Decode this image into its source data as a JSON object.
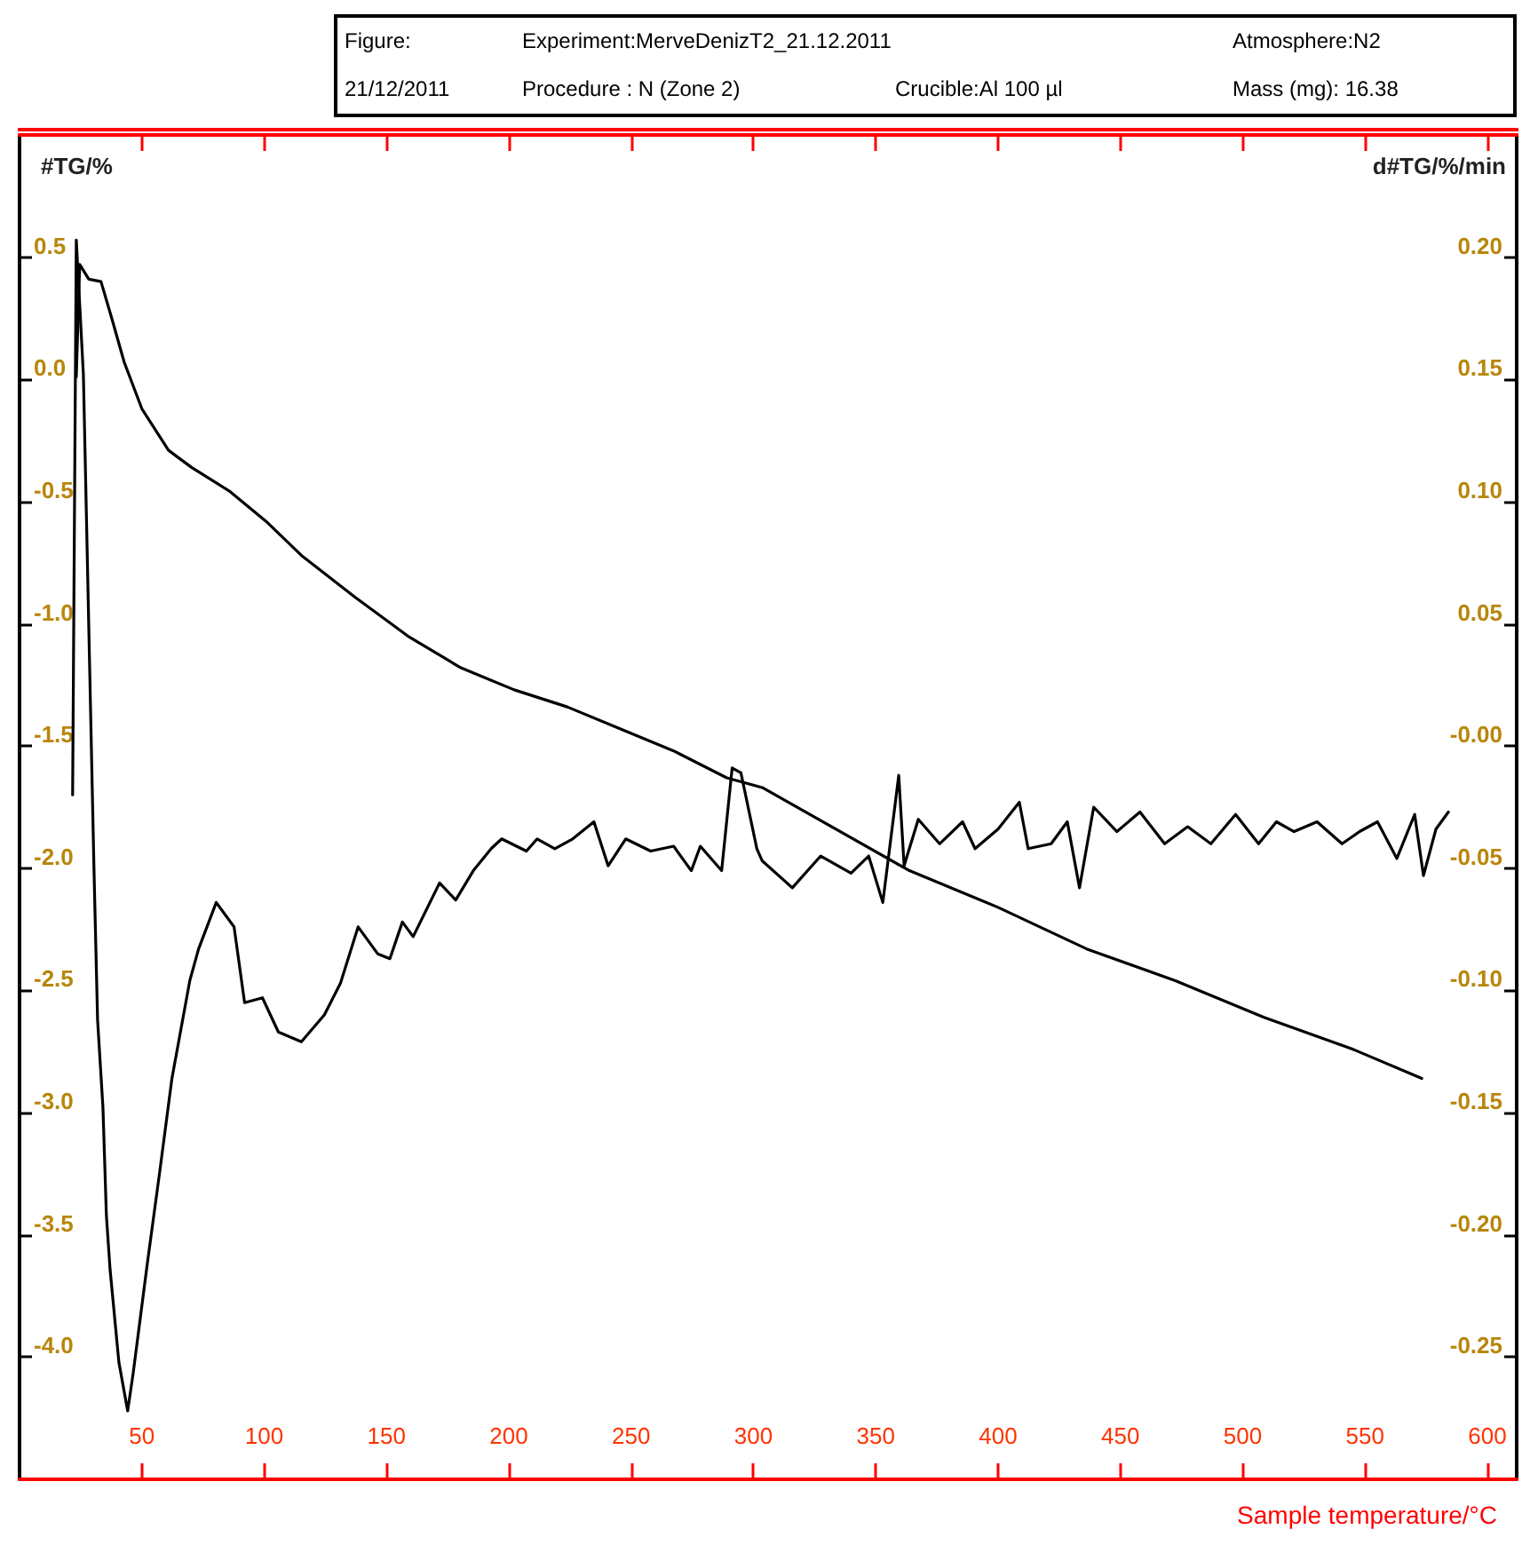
{
  "chart_data": {
    "type": "line",
    "xlabel": "Sample temperature/°C",
    "ylabel": "#TG/%",
    "y2label": "d#TG/%/min",
    "annotations": [
      "Figure:",
      "Experiment:MerveDenizT2_21.12.2011",
      "Atmosphere:N2",
      "21/12/2011",
      "Procedure : N (Zone 2)",
      "Crucible:Al 100 µl",
      "Mass (mg): 16.38"
    ],
    "xlim": [
      0,
      612
    ],
    "xticks": [
      50,
      100,
      150,
      200,
      250,
      300,
      350,
      400,
      450,
      500,
      550,
      600
    ],
    "ylim": [
      -4.5,
      1.0
    ],
    "yticks": [
      0.5,
      {
        "value": 0,
        "label": "0.0"
      },
      -0.5,
      {
        "value": -1,
        "label": "-1.0"
      },
      -1.5,
      {
        "value": -2,
        "label": "-2.0"
      },
      -2.5,
      {
        "value": -3,
        "label": "-3.0"
      },
      -3.5,
      {
        "value": -4,
        "label": "-4.0"
      }
    ],
    "y2lim": [
      -0.3,
      0.25
    ],
    "y2ticks": [
      {
        "value": 0.2,
        "label": "0.20"
      },
      0.15,
      {
        "value": 0.1,
        "label": "0.10"
      },
      0.05,
      {
        "value": 0,
        "label": "-0.00"
      },
      -0.05,
      {
        "value": -0.1,
        "label": "-0.10"
      },
      -0.15,
      {
        "value": -0.2,
        "label": "-0.20"
      },
      -0.25
    ],
    "grid": false,
    "marker": "none",
    "line_style": "solid",
    "series": [
      {
        "color": "#000000",
        "axis": "y",
        "x": [
          23.2,
          24.6,
          28.3,
          33.3,
          37.7,
          42.8,
          50,
          60.9,
          70.3,
          86.2,
          100.7,
          115.2,
          137,
          158.7,
          180.4,
          202.2,
          223.9,
          245.7,
          267.4,
          289.1,
          303.6,
          363.8,
          400,
          436.2,
          472.5,
          508.7,
          544.9,
          573.2
        ],
        "values": [
          0.01,
          0.47,
          0.41,
          0.4,
          0.25,
          0.07,
          -0.12,
          -0.29,
          -0.36,
          -0.46,
          -0.58,
          -0.72,
          -0.89,
          -1.05,
          -1.18,
          -1.27,
          -1.34,
          -1.43,
          -1.52,
          -1.63,
          -1.67,
          -2.01,
          -2.16,
          -2.33,
          -2.46,
          -2.61,
          -2.74,
          -2.86
        ]
      },
      {
        "color": "#000000",
        "axis": "y2",
        "x": [
          21.7,
          23.2,
          26.1,
          30.4,
          31.9,
          34.1,
          35.5,
          37.0,
          40.6,
          44.2,
          46.4,
          52.2,
          57.2,
          62.3,
          69.6,
          73.2,
          80.4,
          87.7,
          92.0,
          99.3,
          105.8,
          115.2,
          124.6,
          131.2,
          138.4,
          146.4,
          151.4,
          156.5,
          160.9,
          171.7,
          178.3,
          185.5,
          192.8,
          197.1,
          207.2,
          211.6,
          218.8,
          226.1,
          234.8,
          240.6,
          247.8,
          258.0,
          267.4,
          274.6,
          278.3,
          287.0,
          291.3,
          294.9,
          301.4,
          303.6,
          315.9,
          327.5,
          339.9,
          347.1,
          352.9,
          359.4,
          361.6,
          367.4,
          376.1,
          385.5,
          390.6,
          400.0,
          408.7,
          412.3,
          421.7,
          428.3,
          433.3,
          439.1,
          448.6,
          458.0,
          468.1,
          477.5,
          487.0,
          497.1,
          506.5,
          513.8,
          521.0,
          530.4,
          540.6,
          547.8,
          555.1,
          563.0,
          570.3,
          573.9,
          579.0,
          584.1
        ],
        "values": [
          -0.02,
          0.207,
          0.152,
          -0.049,
          -0.112,
          -0.148,
          -0.192,
          -0.214,
          -0.252,
          -0.272,
          -0.257,
          -0.212,
          -0.175,
          -0.136,
          -0.096,
          -0.083,
          -0.064,
          -0.074,
          -0.105,
          -0.103,
          -0.117,
          -0.121,
          -0.11,
          -0.097,
          -0.074,
          -0.085,
          -0.087,
          -0.072,
          -0.078,
          -0.056,
          -0.063,
          -0.051,
          -0.042,
          -0.038,
          -0.043,
          -0.038,
          -0.042,
          -0.038,
          -0.031,
          -0.049,
          -0.038,
          -0.043,
          -0.041,
          -0.051,
          -0.041,
          -0.051,
          -0.009,
          -0.011,
          -0.042,
          -0.047,
          -0.058,
          -0.045,
          -0.052,
          -0.045,
          -0.064,
          -0.012,
          -0.049,
          -0.03,
          -0.04,
          -0.031,
          -0.042,
          -0.034,
          -0.023,
          -0.042,
          -0.04,
          -0.031,
          -0.058,
          -0.025,
          -0.035,
          -0.027,
          -0.04,
          -0.033,
          -0.04,
          -0.028,
          -0.04,
          -0.031,
          -0.035,
          -0.031,
          -0.04,
          -0.035,
          -0.031,
          -0.046,
          -0.028,
          -0.053,
          -0.034,
          -0.027
        ]
      }
    ]
  }
}
